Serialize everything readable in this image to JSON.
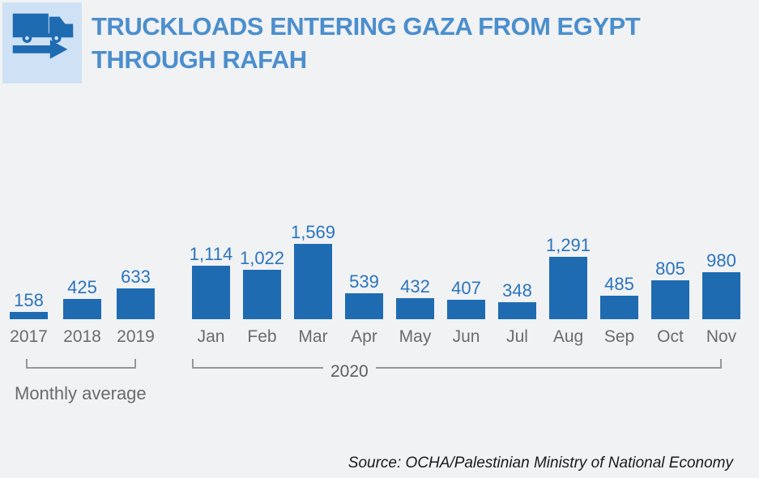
{
  "title": {
    "line1": "TRUCKLOADS ENTERING GAZA FROM EGYPT",
    "line2": "THROUGH RAFAH"
  },
  "icons": {
    "truck": "truck-icon",
    "arrow": "arrow-right-icon"
  },
  "source": {
    "text": "Source: OCHA/Palestinian Ministry of National Economy"
  },
  "colors": {
    "background": "#f1f2f4",
    "icon_box_bg": "#cfe2f5",
    "icon_fill": "#1e6bb2",
    "bar": "#1e6bb2",
    "value_label": "#2a74bd",
    "title": "#4b8ecd",
    "axis_label": "#6b6b6b",
    "bracket": "#979797",
    "source_text": "#1a1a1a"
  },
  "chart_data": {
    "type": "bar",
    "title": "Truckloads entering Gaza from Egypt through Rafah",
    "xlabel": "",
    "ylabel": "",
    "ylim": [
      0,
      1569
    ],
    "grid": false,
    "legend": "none",
    "bar_color": "#1e6bb2",
    "groups": [
      {
        "label": "Monthly average",
        "categories": [
          "2017",
          "2018",
          "2019"
        ],
        "values": [
          158,
          425,
          633
        ],
        "value_labels": [
          "158",
          "425",
          "633"
        ]
      },
      {
        "label": "2020",
        "categories": [
          "Jan",
          "Feb",
          "Mar",
          "Apr",
          "May",
          "Jun",
          "Jul",
          "Aug",
          "Sep",
          "Oct",
          "Nov"
        ],
        "values": [
          1114,
          1022,
          1569,
          539,
          432,
          407,
          348,
          1291,
          485,
          805,
          980
        ],
        "value_labels": [
          "1,114",
          "1,022",
          "1,569",
          "539",
          "432",
          "407",
          "348",
          "1,291",
          "485",
          "805",
          "980"
        ]
      }
    ]
  }
}
